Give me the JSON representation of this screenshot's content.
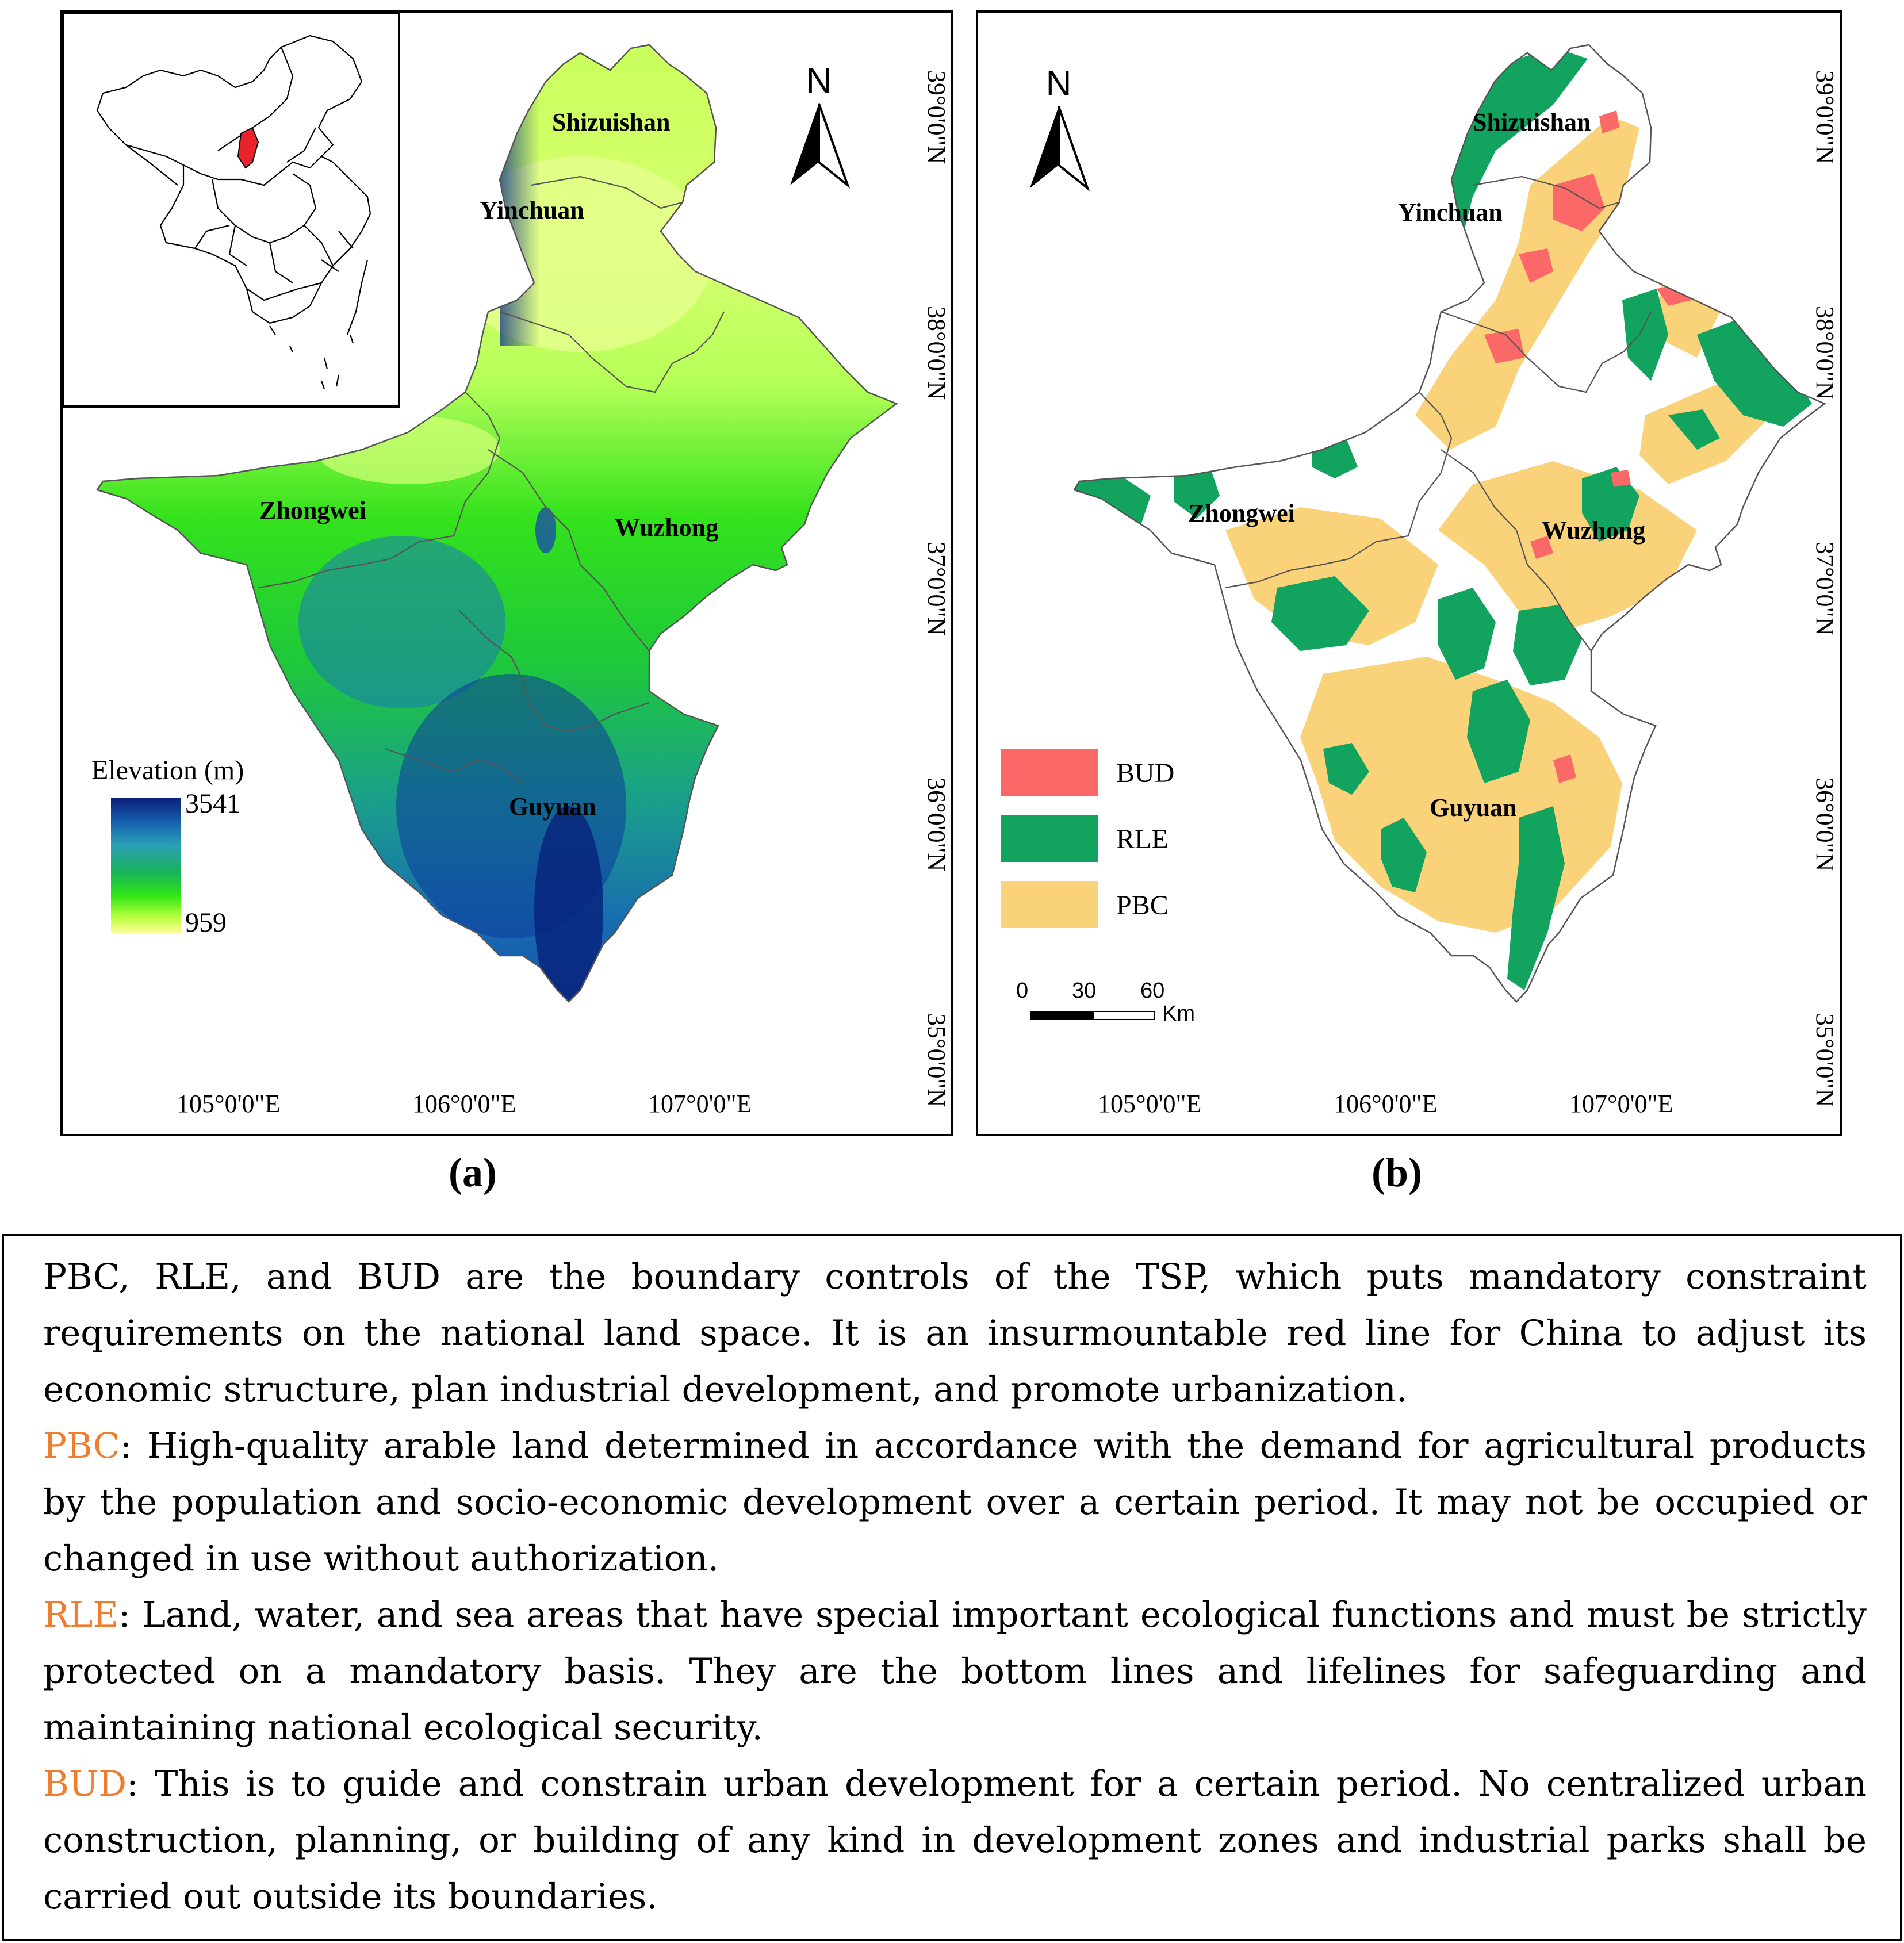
{
  "panel_a": {
    "caption": "(a)",
    "cities": [
      "Shizuishan",
      "Yinchuan",
      "Zhongwei",
      "Wuzhong",
      "Guyuan"
    ],
    "north_label": "N",
    "legend": {
      "title": "Elevation (m)",
      "max": "3541",
      "min": "959"
    },
    "lon_labels": [
      "105°0'0\"E",
      "106°0'0\"E",
      "107°0'0\"E"
    ],
    "lat_labels": [
      "39°0'0\"N",
      "38°0'0\"N",
      "37°0'0\"N",
      "36°0'0\"N",
      "35°0'0\"N"
    ]
  },
  "panel_b": {
    "caption": "(b)",
    "cities": [
      "Shizuishan",
      "Yinchuan",
      "Zhongwei",
      "Wuzhong",
      "Guyuan"
    ],
    "north_label": "N",
    "legend": [
      {
        "label": "BUD",
        "color": "#fb6868"
      },
      {
        "label": "RLE",
        "color": "#12a45e"
      },
      {
        "label": "PBC",
        "color": "#fad27a"
      }
    ],
    "scale": {
      "ticks": [
        "0",
        "30",
        "60"
      ],
      "unit": "Km"
    },
    "lon_labels": [
      "105°0'0\"E",
      "106°0'0\"E",
      "107°0'0\"E"
    ],
    "lat_labels": [
      "39°0'0\"N",
      "38°0'0\"N",
      "37°0'0\"N",
      "36°0'0\"N",
      "35°0'0\"N"
    ]
  },
  "text_box": {
    "intro": "PBC, RLE, and BUD are the boundary controls of the TSP, which puts mandatory constraint requirements on the national land space. It is an insurmountable red line for China to adjust its economic structure, plan industrial development, and promote urbanization.",
    "definitions": [
      {
        "term": "PBC",
        "text": ": High-quality arable land determined in accordance with the demand for agricultural products by the population and socio-economic development over a certain period. It may not be occupied or changed in use without authorization."
      },
      {
        "term": "RLE",
        "text": ": Land, water, and sea areas that have special important ecological functions and must be strictly protected on a mandatory basis. They are the bottom lines and lifelines for safeguarding and maintaining national ecological security."
      },
      {
        "term": "BUD",
        "text": ": This is to guide and constrain urban development for a certain period. No centralized urban construction, planning, or building of any kind in development zones and industrial parks shall be carried out outside its boundaries."
      }
    ]
  },
  "colors": {
    "term_orange": "#ef7d2d",
    "bud": "#fb6868",
    "rle": "#12a45e",
    "pbc": "#fad27a"
  }
}
